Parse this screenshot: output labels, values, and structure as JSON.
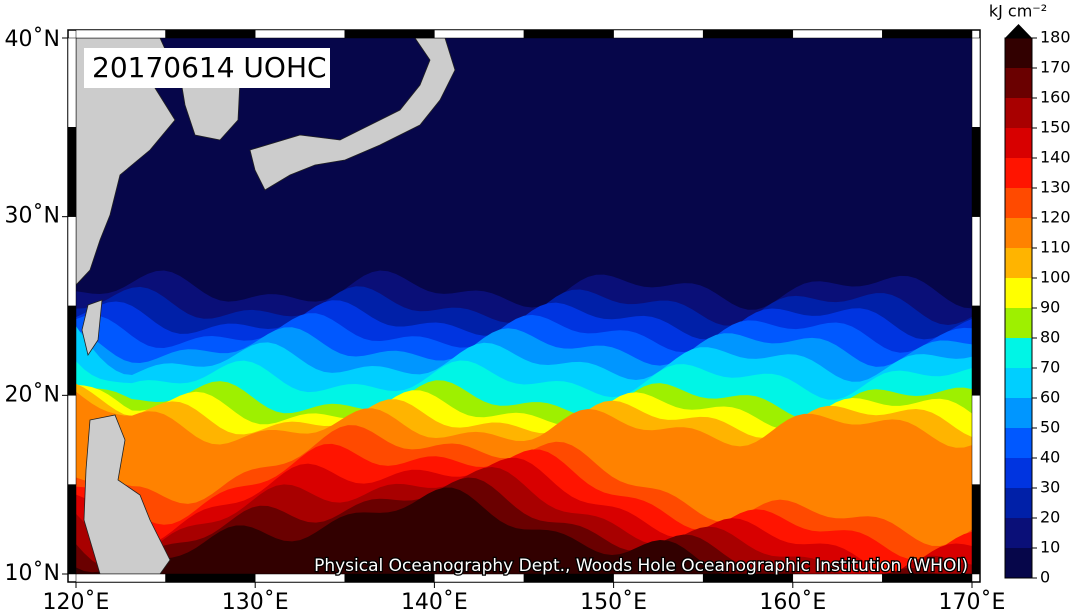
{
  "chart_data": {
    "type": "heatmap",
    "title": "20170614 UOHC",
    "credit": "Physical Oceanography Dept., Woods Hole Oceanographic Institution (WHOI)",
    "colorbar_label": "kJ cm⁻²",
    "ylim": [
      10,
      40
    ],
    "yticks": [
      {
        "value": 10,
        "label": "10˚N"
      },
      {
        "value": 20,
        "label": "20˚N"
      },
      {
        "value": 30,
        "label": "30˚N"
      },
      {
        "value": 40,
        "label": "40˚N"
      }
    ],
    "xlim": [
      120,
      170
    ],
    "xticks": [
      {
        "value": 120,
        "label": "120˚E"
      },
      {
        "value": 130,
        "label": "130˚E"
      },
      {
        "value": 140,
        "label": "140˚E"
      },
      {
        "value": 150,
        "label": "150˚E"
      },
      {
        "value": 160,
        "label": "160˚E"
      },
      {
        "value": 170,
        "label": "170˚E"
      }
    ],
    "clim": [
      0,
      180
    ],
    "cticks": [
      0,
      10,
      20,
      30,
      40,
      50,
      60,
      70,
      80,
      90,
      100,
      110,
      120,
      130,
      140,
      150,
      160,
      170,
      180
    ],
    "colors": [
      "#06064a",
      "#0a0f78",
      "#0020a8",
      "#0034e0",
      "#0058ff",
      "#0096ff",
      "#00cfff",
      "#00f5e6",
      "#9ef000",
      "#ffff00",
      "#ffb400",
      "#ff8200",
      "#ff4a00",
      "#ff1400",
      "#d80000",
      "#a80000",
      "#6a0000",
      "#320000"
    ],
    "over_color": "#000000"
  }
}
